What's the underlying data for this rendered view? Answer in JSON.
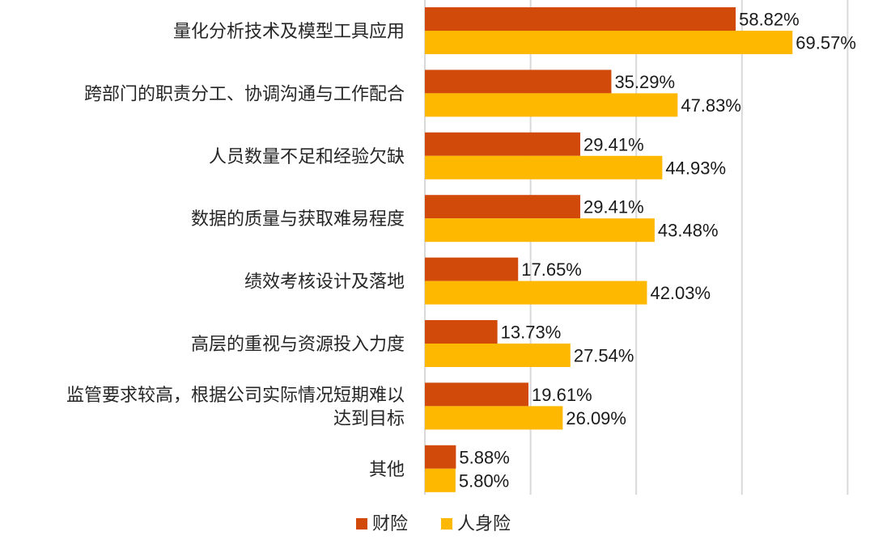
{
  "chart_data": {
    "type": "bar",
    "orientation": "horizontal",
    "categories": [
      [
        "量化分析技术及模型工具应用"
      ],
      [
        "跨部门的职责分工、协调沟通与工作配合"
      ],
      [
        "人员数量不足和经验欠缺"
      ],
      [
        "数据的质量与获取难易程度"
      ],
      [
        "绩效考核设计及落地"
      ],
      [
        "高层的重视与资源投入力度"
      ],
      [
        "监管要求较高，根据公司实际情况短期难以",
        "达到目标"
      ],
      [
        "其他"
      ]
    ],
    "series": [
      {
        "name": "财险",
        "color": "#D24A0A",
        "values": [
          58.82,
          35.29,
          29.41,
          29.41,
          17.65,
          13.73,
          19.61,
          5.88
        ],
        "labels": [
          "58.82%",
          "35.29%",
          "29.41%",
          "29.41%",
          "17.65%",
          "13.73%",
          "19.61%",
          "5.88%"
        ]
      },
      {
        "name": "人身险",
        "color": "#FFB800",
        "values": [
          69.57,
          47.83,
          44.93,
          43.48,
          42.03,
          27.54,
          26.09,
          5.8
        ],
        "labels": [
          "69.57%",
          "47.83%",
          "44.93%",
          "43.48%",
          "42.03%",
          "27.54%",
          "26.09%",
          "5.80%"
        ]
      }
    ],
    "xlim": [
      0,
      80
    ],
    "grid": true,
    "gridline_color": "#D9D9D9",
    "legend_position": "bottom",
    "title": "",
    "xlabel": "",
    "ylabel": ""
  }
}
